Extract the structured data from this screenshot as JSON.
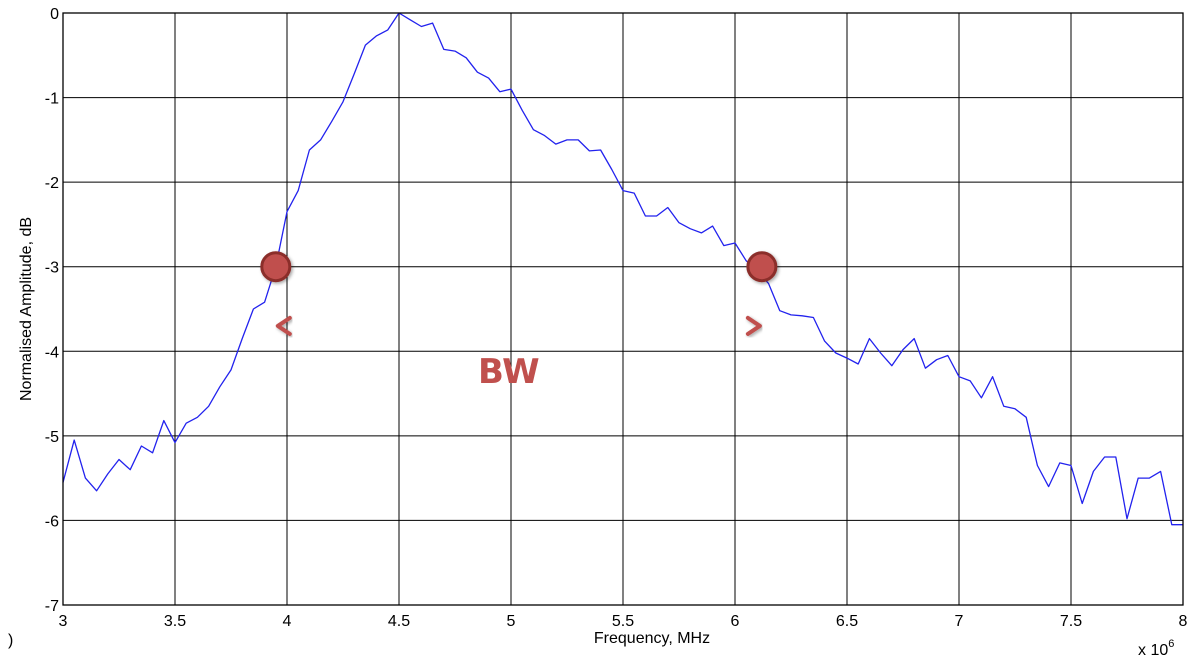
{
  "chart_data": {
    "type": "line",
    "title": "",
    "xlabel": "Frequency, MHz",
    "ylabel": "Normalised Amplitude, dB",
    "x_multiplier_label": "x 10",
    "x_multiplier_exponent": "6",
    "stray_label": ")",
    "xlim": [
      3,
      8
    ],
    "ylim": [
      -7,
      0
    ],
    "xticks": [
      3,
      3.5,
      4,
      4.5,
      5,
      5.5,
      6,
      6.5,
      7,
      7.5,
      8
    ],
    "xtick_labels": [
      "3",
      "3.5",
      "4",
      "4.5",
      "5",
      "5.5",
      "6",
      "6.5",
      "7",
      "7.5",
      "8"
    ],
    "yticks": [
      0,
      -1,
      -2,
      -3,
      -4,
      -5,
      -6,
      -7
    ],
    "ytick_labels": [
      "0",
      "-1",
      "-2",
      "-3",
      "-4",
      "-5",
      "-6",
      "-7"
    ],
    "grid": true,
    "series_color": "#2222ee",
    "annotation_color": "#c0504d",
    "annotation": {
      "text": "BW",
      "level_db": -3,
      "marker_x": [
        3.95,
        6.12
      ],
      "arrow_x": [
        3.95,
        6.12
      ],
      "arrow_y": -3.7
    },
    "series": [
      {
        "x": [
          3.0,
          3.05,
          3.1,
          3.15,
          3.2,
          3.25,
          3.3,
          3.35,
          3.4,
          3.45,
          3.5,
          3.55,
          3.6,
          3.65,
          3.7,
          3.75,
          3.8,
          3.85,
          3.9,
          3.95,
          4.0,
          4.05,
          4.1,
          4.15,
          4.2,
          4.25,
          4.3,
          4.35,
          4.4,
          4.45,
          4.5,
          4.55,
          4.6,
          4.65,
          4.7,
          4.75,
          4.8,
          4.85,
          4.9,
          4.95,
          5.0,
          5.05,
          5.1,
          5.15,
          5.2,
          5.25,
          5.3,
          5.35,
          5.4,
          5.45,
          5.5,
          5.55,
          5.6,
          5.65,
          5.7,
          5.75,
          5.8,
          5.85,
          5.9,
          5.95,
          6.0,
          6.05,
          6.1,
          6.15,
          6.2,
          6.25,
          6.3,
          6.35,
          6.4,
          6.45,
          6.5,
          6.55,
          6.6,
          6.65,
          6.7,
          6.75,
          6.8,
          6.85,
          6.9,
          6.95,
          7.0,
          7.05,
          7.1,
          7.15,
          7.2,
          7.25,
          7.3,
          7.35,
          7.4,
          7.45,
          7.5,
          7.55,
          7.6,
          7.65,
          7.7,
          7.75,
          7.8,
          7.85,
          7.9,
          7.95,
          8.0
        ],
        "values": [
          -5.55,
          -5.05,
          -5.5,
          -5.65,
          -5.45,
          -5.28,
          -5.4,
          -5.12,
          -5.2,
          -4.82,
          -5.08,
          -4.85,
          -4.78,
          -4.65,
          -4.42,
          -4.22,
          -3.85,
          -3.5,
          -3.42,
          -3.0,
          -2.35,
          -2.1,
          -1.62,
          -1.5,
          -1.28,
          -1.05,
          -0.72,
          -0.38,
          -0.27,
          -0.2,
          -0.0,
          -0.08,
          -0.16,
          -0.12,
          -0.43,
          -0.45,
          -0.53,
          -0.7,
          -0.77,
          -0.93,
          -0.9,
          -1.15,
          -1.38,
          -1.45,
          -1.55,
          -1.5,
          -1.5,
          -1.63,
          -1.62,
          -1.85,
          -2.1,
          -2.13,
          -2.4,
          -2.4,
          -2.3,
          -2.48,
          -2.55,
          -2.6,
          -2.52,
          -2.75,
          -2.72,
          -2.93,
          -3.05,
          -3.2,
          -3.52,
          -3.57,
          -3.58,
          -3.6,
          -3.88,
          -4.02,
          -4.08,
          -4.15,
          -3.85,
          -4.02,
          -4.17,
          -3.98,
          -3.85,
          -4.2,
          -4.1,
          -4.05,
          -4.3,
          -4.35,
          -4.55,
          -4.3,
          -4.65,
          -4.68,
          -4.78,
          -5.35,
          -5.6,
          -5.32,
          -5.35,
          -5.8,
          -5.42,
          -5.25,
          -5.25,
          -5.98,
          -5.5,
          -5.5,
          -5.42,
          -6.05,
          -6.05
        ]
      }
    ]
  }
}
